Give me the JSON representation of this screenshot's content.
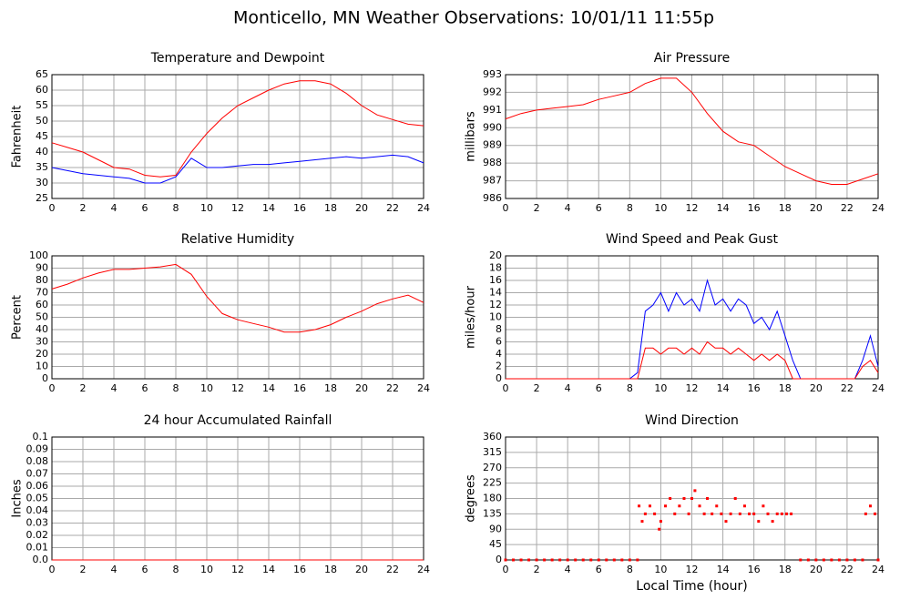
{
  "title": "Monticello, MN Weather Observations: 10/01/11 11:55p",
  "chart_data": [
    {
      "type": "line",
      "title": "Temperature and Dewpoint",
      "ylabel": "Fahrenheit",
      "x": [
        0,
        1,
        2,
        3,
        4,
        5,
        6,
        7,
        8,
        9,
        10,
        11,
        12,
        13,
        14,
        15,
        16,
        17,
        18,
        19,
        20,
        21,
        22,
        23,
        24
      ],
      "series": [
        {
          "color": "#ff0000",
          "values": [
            43,
            41.5,
            40,
            37.5,
            35,
            34.5,
            32.5,
            32,
            32.5,
            40,
            46,
            51,
            55,
            57.5,
            60,
            62,
            63,
            63,
            62,
            59,
            55,
            52,
            50.5,
            49,
            48.5
          ]
        },
        {
          "color": "#0000ff",
          "values": [
            35,
            34,
            33,
            32.5,
            32,
            31.5,
            30,
            30,
            32,
            38,
            35,
            35,
            35.5,
            36,
            36,
            36.5,
            37,
            37.5,
            38,
            38.5,
            38,
            38.5,
            39,
            38.5,
            36.5
          ]
        }
      ],
      "xlim": [
        0,
        24
      ],
      "ylim": [
        25,
        65
      ],
      "xticks": [
        0,
        2,
        4,
        6,
        8,
        10,
        12,
        14,
        16,
        18,
        20,
        22,
        24
      ],
      "yticks": [
        25,
        30,
        35,
        40,
        45,
        50,
        55,
        60,
        65
      ],
      "grid": true
    },
    {
      "type": "line",
      "title": "Air Pressure",
      "ylabel": "millibars",
      "x": [
        0,
        1,
        2,
        3,
        4,
        5,
        6,
        7,
        8,
        9,
        10,
        11,
        12,
        13,
        14,
        15,
        16,
        17,
        18,
        19,
        20,
        21,
        22,
        23,
        24
      ],
      "series": [
        {
          "color": "#ff0000",
          "values": [
            990.5,
            990.8,
            991,
            991.1,
            991.2,
            991.3,
            991.6,
            991.8,
            992,
            992.5,
            992.8,
            992.8,
            992,
            990.8,
            989.8,
            989.2,
            989,
            988.4,
            987.8,
            987.4,
            987,
            986.8,
            986.8,
            987.1,
            987.4
          ]
        }
      ],
      "xlim": [
        0,
        24
      ],
      "ylim": [
        986,
        993
      ],
      "xticks": [
        0,
        2,
        4,
        6,
        8,
        10,
        12,
        14,
        16,
        18,
        20,
        22,
        24
      ],
      "yticks": [
        986,
        987,
        988,
        989,
        990,
        991,
        992,
        993
      ],
      "grid": true
    },
    {
      "type": "line",
      "title": "Relative Humidity",
      "ylabel": "Percent",
      "x": [
        0,
        1,
        2,
        3,
        4,
        5,
        6,
        7,
        8,
        9,
        10,
        11,
        12,
        13,
        14,
        15,
        16,
        17,
        18,
        19,
        20,
        21,
        22,
        23,
        24
      ],
      "series": [
        {
          "color": "#ff0000",
          "values": [
            73,
            77,
            82,
            86,
            89,
            89,
            90,
            91,
            93,
            85,
            67,
            53,
            48,
            45,
            42,
            38,
            38,
            40,
            44,
            50,
            55,
            61,
            65,
            68,
            62
          ]
        }
      ],
      "xlim": [
        0,
        24
      ],
      "ylim": [
        0,
        100
      ],
      "xticks": [
        0,
        2,
        4,
        6,
        8,
        10,
        12,
        14,
        16,
        18,
        20,
        22,
        24
      ],
      "yticks": [
        0,
        10,
        20,
        30,
        40,
        50,
        60,
        70,
        80,
        90,
        100
      ],
      "grid": true
    },
    {
      "type": "line",
      "title": "Wind Speed and Peak Gust",
      "ylabel": "miles/hour",
      "x": [
        0,
        0.5,
        1,
        1.5,
        2,
        2.5,
        3,
        3.5,
        4,
        4.5,
        5,
        5.5,
        6,
        6.5,
        7,
        7.5,
        8,
        8.5,
        9,
        9.5,
        10,
        10.5,
        11,
        11.5,
        12,
        12.5,
        13,
        13.5,
        14,
        14.5,
        15,
        15.5,
        16,
        16.5,
        17,
        17.5,
        18,
        18.5,
        19,
        19.5,
        20,
        20.5,
        21,
        21.5,
        22,
        22.5,
        23,
        23.5,
        24
      ],
      "series": [
        {
          "color": "#0000ff",
          "values": [
            0,
            0,
            0,
            0,
            0,
            0,
            0,
            0,
            0,
            0,
            0,
            0,
            0,
            0,
            0,
            0,
            0,
            1,
            11,
            12,
            14,
            11,
            14,
            12,
            13,
            11,
            16,
            12,
            13,
            11,
            13,
            12,
            9,
            10,
            8,
            11,
            7,
            3,
            0,
            0,
            0,
            0,
            0,
            0,
            0,
            0,
            3,
            7,
            2
          ]
        },
        {
          "color": "#ff0000",
          "values": [
            0,
            0,
            0,
            0,
            0,
            0,
            0,
            0,
            0,
            0,
            0,
            0,
            0,
            0,
            0,
            0,
            0,
            0,
            5,
            5,
            4,
            5,
            5,
            4,
            5,
            4,
            6,
            5,
            5,
            4,
            5,
            4,
            3,
            4,
            3,
            4,
            3,
            0,
            0,
            0,
            0,
            0,
            0,
            0,
            0,
            0,
            2,
            3,
            1
          ]
        }
      ],
      "xlim": [
        0,
        24
      ],
      "ylim": [
        0,
        20
      ],
      "xticks": [
        0,
        2,
        4,
        6,
        8,
        10,
        12,
        14,
        16,
        18,
        20,
        22,
        24
      ],
      "yticks": [
        0,
        2,
        4,
        6,
        8,
        10,
        12,
        14,
        16,
        18,
        20
      ],
      "grid": true
    },
    {
      "type": "line",
      "title": "24 hour Accumulated Rainfall",
      "ylabel": "Inches",
      "x": [
        0,
        1,
        2,
        3,
        4,
        5,
        6,
        7,
        8,
        9,
        10,
        11,
        12,
        13,
        14,
        15,
        16,
        17,
        18,
        19,
        20,
        21,
        22,
        23,
        24
      ],
      "series": [
        {
          "color": "#ff0000",
          "values": [
            0,
            0,
            0,
            0,
            0,
            0,
            0,
            0,
            0,
            0,
            0,
            0,
            0,
            0,
            0,
            0,
            0,
            0,
            0,
            0,
            0,
            0,
            0,
            0,
            0
          ]
        }
      ],
      "xlim": [
        0,
        24
      ],
      "ylim": [
        0,
        0.1
      ],
      "xticks": [
        0,
        2,
        4,
        6,
        8,
        10,
        12,
        14,
        16,
        18,
        20,
        22,
        24
      ],
      "yticks": [
        {
          "value": 0,
          "label": "0.0"
        },
        0.01,
        0.02,
        0.03,
        0.04,
        0.05,
        0.06,
        0.07,
        0.08,
        0.09,
        0.1
      ],
      "grid": true
    },
    {
      "type": "scatter",
      "title": "Wind Direction",
      "ylabel": "degrees",
      "xlabel": "Local Time (hour)",
      "x": [
        0,
        0.5,
        1,
        1.5,
        2,
        2.5,
        3,
        3.5,
        4,
        4.5,
        5,
        5.5,
        6,
        6.5,
        7,
        7.5,
        8,
        8.5,
        8.6,
        8.8,
        9,
        9.3,
        9.6,
        9.9,
        10,
        10.3,
        10.6,
        10.9,
        11.2,
        11.5,
        11.8,
        12,
        12.2,
        12.5,
        12.8,
        13,
        13.3,
        13.6,
        13.9,
        14.2,
        14.5,
        14.8,
        15.1,
        15.4,
        15.7,
        16,
        16.3,
        16.6,
        16.9,
        17.2,
        17.5,
        17.8,
        18.1,
        18.4,
        19,
        19.5,
        20,
        20.5,
        21,
        21.5,
        22,
        22.5,
        23,
        23.2,
        23.5,
        23.8,
        24
      ],
      "series": [
        {
          "color": "#ff0000",
          "values": [
            0,
            0,
            0,
            0,
            0,
            0,
            0,
            0,
            0,
            0,
            0,
            0,
            0,
            0,
            0,
            0,
            0,
            0,
            158,
            113,
            135,
            158,
            135,
            90,
            113,
            158,
            180,
            135,
            158,
            180,
            135,
            180,
            203,
            158,
            135,
            180,
            135,
            158,
            135,
            113,
            135,
            180,
            135,
            158,
            135,
            135,
            113,
            158,
            135,
            113,
            135,
            135,
            135,
            135,
            0,
            0,
            0,
            0,
            0,
            0,
            0,
            0,
            0,
            135,
            158,
            135,
            0
          ]
        }
      ],
      "xlim": [
        0,
        24
      ],
      "ylim": [
        0,
        360
      ],
      "xticks": [
        0,
        2,
        4,
        6,
        8,
        10,
        12,
        14,
        16,
        18,
        20,
        22,
        24
      ],
      "yticks": [
        0,
        45,
        90,
        135,
        180,
        225,
        270,
        315,
        360
      ],
      "grid": true
    }
  ]
}
